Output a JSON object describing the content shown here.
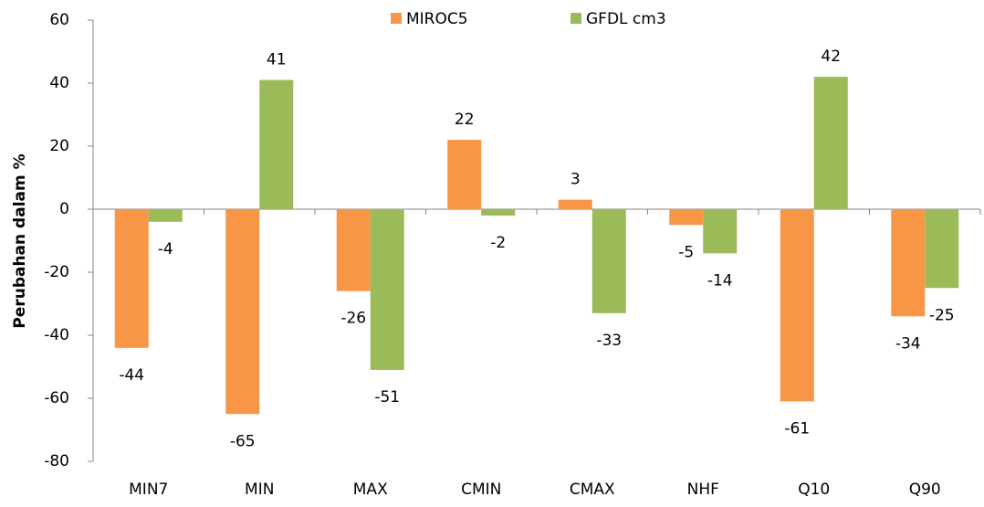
{
  "chart_data": {
    "type": "bar",
    "y_label": "Perubahan dalam %",
    "categories": [
      "MIN7",
      "MIN",
      "MAX",
      "CMIN",
      "CMAX",
      "NHF",
      "Q10",
      "Q90"
    ],
    "series": [
      {
        "name": "MIROC5",
        "color": "#f79646",
        "values": [
          -44,
          -65,
          -26,
          22,
          3,
          -5,
          -61,
          -34
        ]
      },
      {
        "name": "GFDL cm3",
        "color": "#9bbb59",
        "values": [
          -4,
          41,
          -51,
          -2,
          -33,
          -14,
          42,
          -25
        ]
      }
    ],
    "ylim": [
      -80,
      60
    ],
    "yticks": [
      -80,
      -60,
      -40,
      -20,
      0,
      20,
      40,
      60
    ],
    "legend": "top"
  }
}
